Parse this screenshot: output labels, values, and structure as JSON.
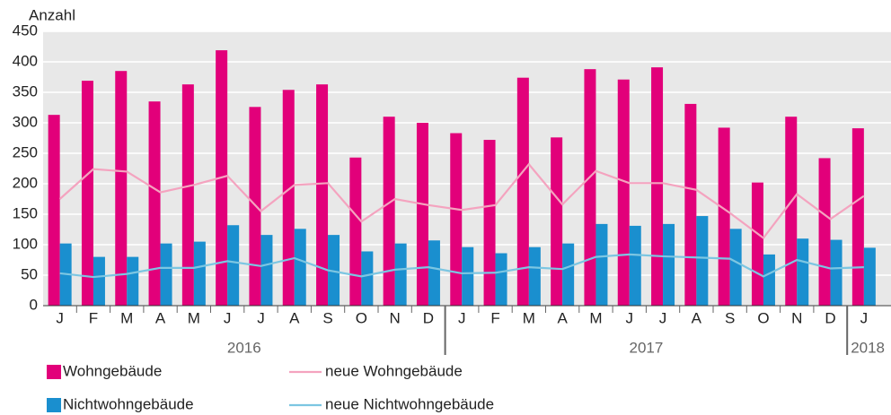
{
  "chart_data": {
    "type": "bar_line",
    "y_label": "Anzahl",
    "groups": [
      {
        "name": "2016",
        "categories": [
          "J",
          "F",
          "M",
          "A",
          "M",
          "J",
          "J",
          "A",
          "S",
          "O",
          "N",
          "D"
        ]
      },
      {
        "name": "2017",
        "categories": [
          "J",
          "F",
          "M",
          "A",
          "M",
          "J",
          "J",
          "A",
          "S",
          "O",
          "N",
          "D"
        ]
      },
      {
        "name": "2018",
        "categories": [
          "J"
        ]
      }
    ],
    "series": [
      {
        "name": "Wohngebäude",
        "kind": "bar",
        "color": "#e2007a",
        "values": [
          313,
          369,
          385,
          335,
          363,
          419,
          326,
          354,
          363,
          243,
          310,
          300,
          283,
          272,
          374,
          276,
          388,
          371,
          391,
          331,
          292,
          202,
          310,
          242,
          291
        ]
      },
      {
        "name": "Nichtwohngebäude",
        "kind": "bar",
        "color": "#1a8fcf",
        "values": [
          102,
          80,
          80,
          102,
          105,
          132,
          116,
          126,
          116,
          89,
          102,
          107,
          96,
          86,
          96,
          102,
          134,
          131,
          134,
          147,
          126,
          84,
          110,
          108,
          95
        ]
      },
      {
        "name": "neue Wohngebäude",
        "kind": "line",
        "color": "#f4a3bf",
        "values": [
          175,
          224,
          220,
          186,
          198,
          213,
          155,
          198,
          201,
          138,
          175,
          165,
          157,
          165,
          232,
          166,
          221,
          201,
          201,
          190,
          152,
          111,
          183,
          142,
          180
        ]
      },
      {
        "name": "neue Nichtwohngebäude",
        "kind": "line",
        "color": "#7cc6e2",
        "values": [
          53,
          47,
          52,
          62,
          62,
          73,
          65,
          78,
          58,
          48,
          59,
          63,
          53,
          54,
          63,
          60,
          80,
          84,
          81,
          79,
          77,
          48,
          75,
          61,
          63
        ]
      }
    ],
    "ylim": [
      0,
      450
    ],
    "yticks": [
      0,
      50,
      100,
      150,
      200,
      250,
      300,
      350,
      400,
      450
    ],
    "grid": true
  }
}
